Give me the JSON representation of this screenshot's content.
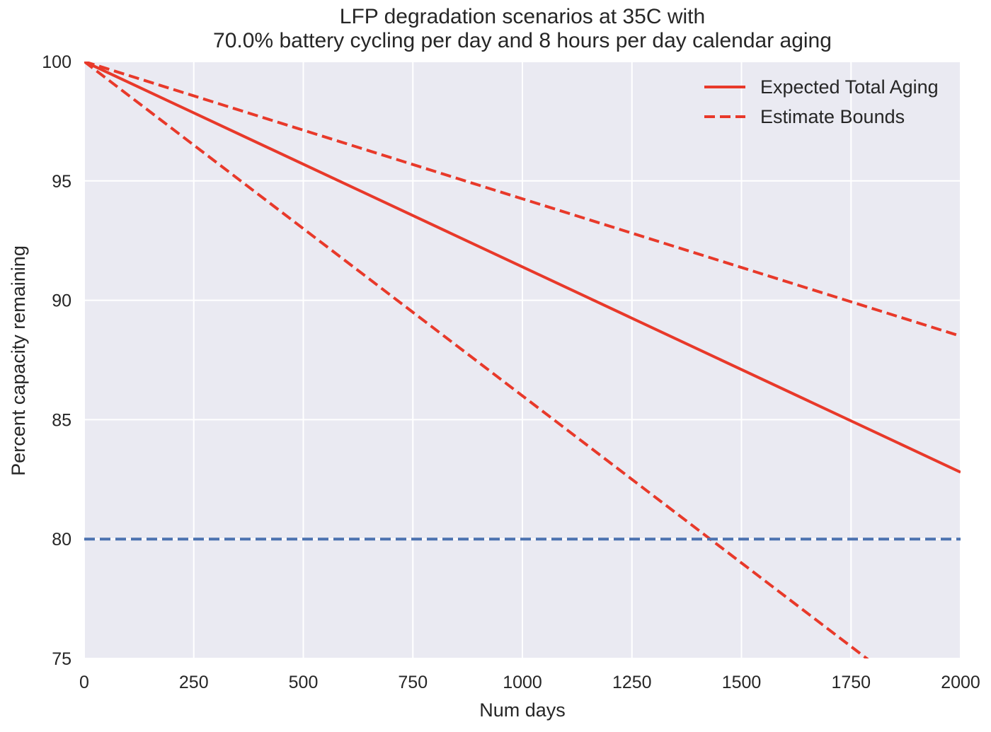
{
  "chart_data": {
    "type": "line",
    "title": "LFP degradation scenarios at 35C with",
    "subtitle": "70.0% battery cycling per day and 8 hours per day calendar aging",
    "xlabel": "Num days",
    "ylabel": "Percent capacity remaining",
    "xlim": [
      0,
      2000
    ],
    "ylim": [
      75,
      100
    ],
    "xticks": [
      0,
      250,
      500,
      750,
      1000,
      1250,
      1500,
      1750,
      2000
    ],
    "yticks": [
      75,
      80,
      85,
      90,
      95,
      100
    ],
    "grid": true,
    "legend_position": "top-right",
    "series": [
      {
        "name": "Expected Total Aging",
        "style": "solid",
        "color": "#E8392A",
        "x": [
          0,
          2000
        ],
        "y": [
          100,
          82.8
        ]
      },
      {
        "name": "Estimate Bounds",
        "style": "dashed",
        "color": "#E8392A",
        "x": [
          0,
          2000
        ],
        "y": [
          100,
          88.5
        ]
      },
      {
        "name": "Estimate Bounds (lower)",
        "style": "dashed",
        "color": "#E8392A",
        "legend": false,
        "x": [
          0,
          2000
        ],
        "y": [
          100,
          72.0
        ]
      }
    ],
    "reference_lines": [
      {
        "y": 80,
        "style": "dashed",
        "color": "#4C72B0"
      }
    ],
    "colors": {
      "plot_background": "#EAEAF2",
      "grid": "#FFFFFF"
    }
  }
}
